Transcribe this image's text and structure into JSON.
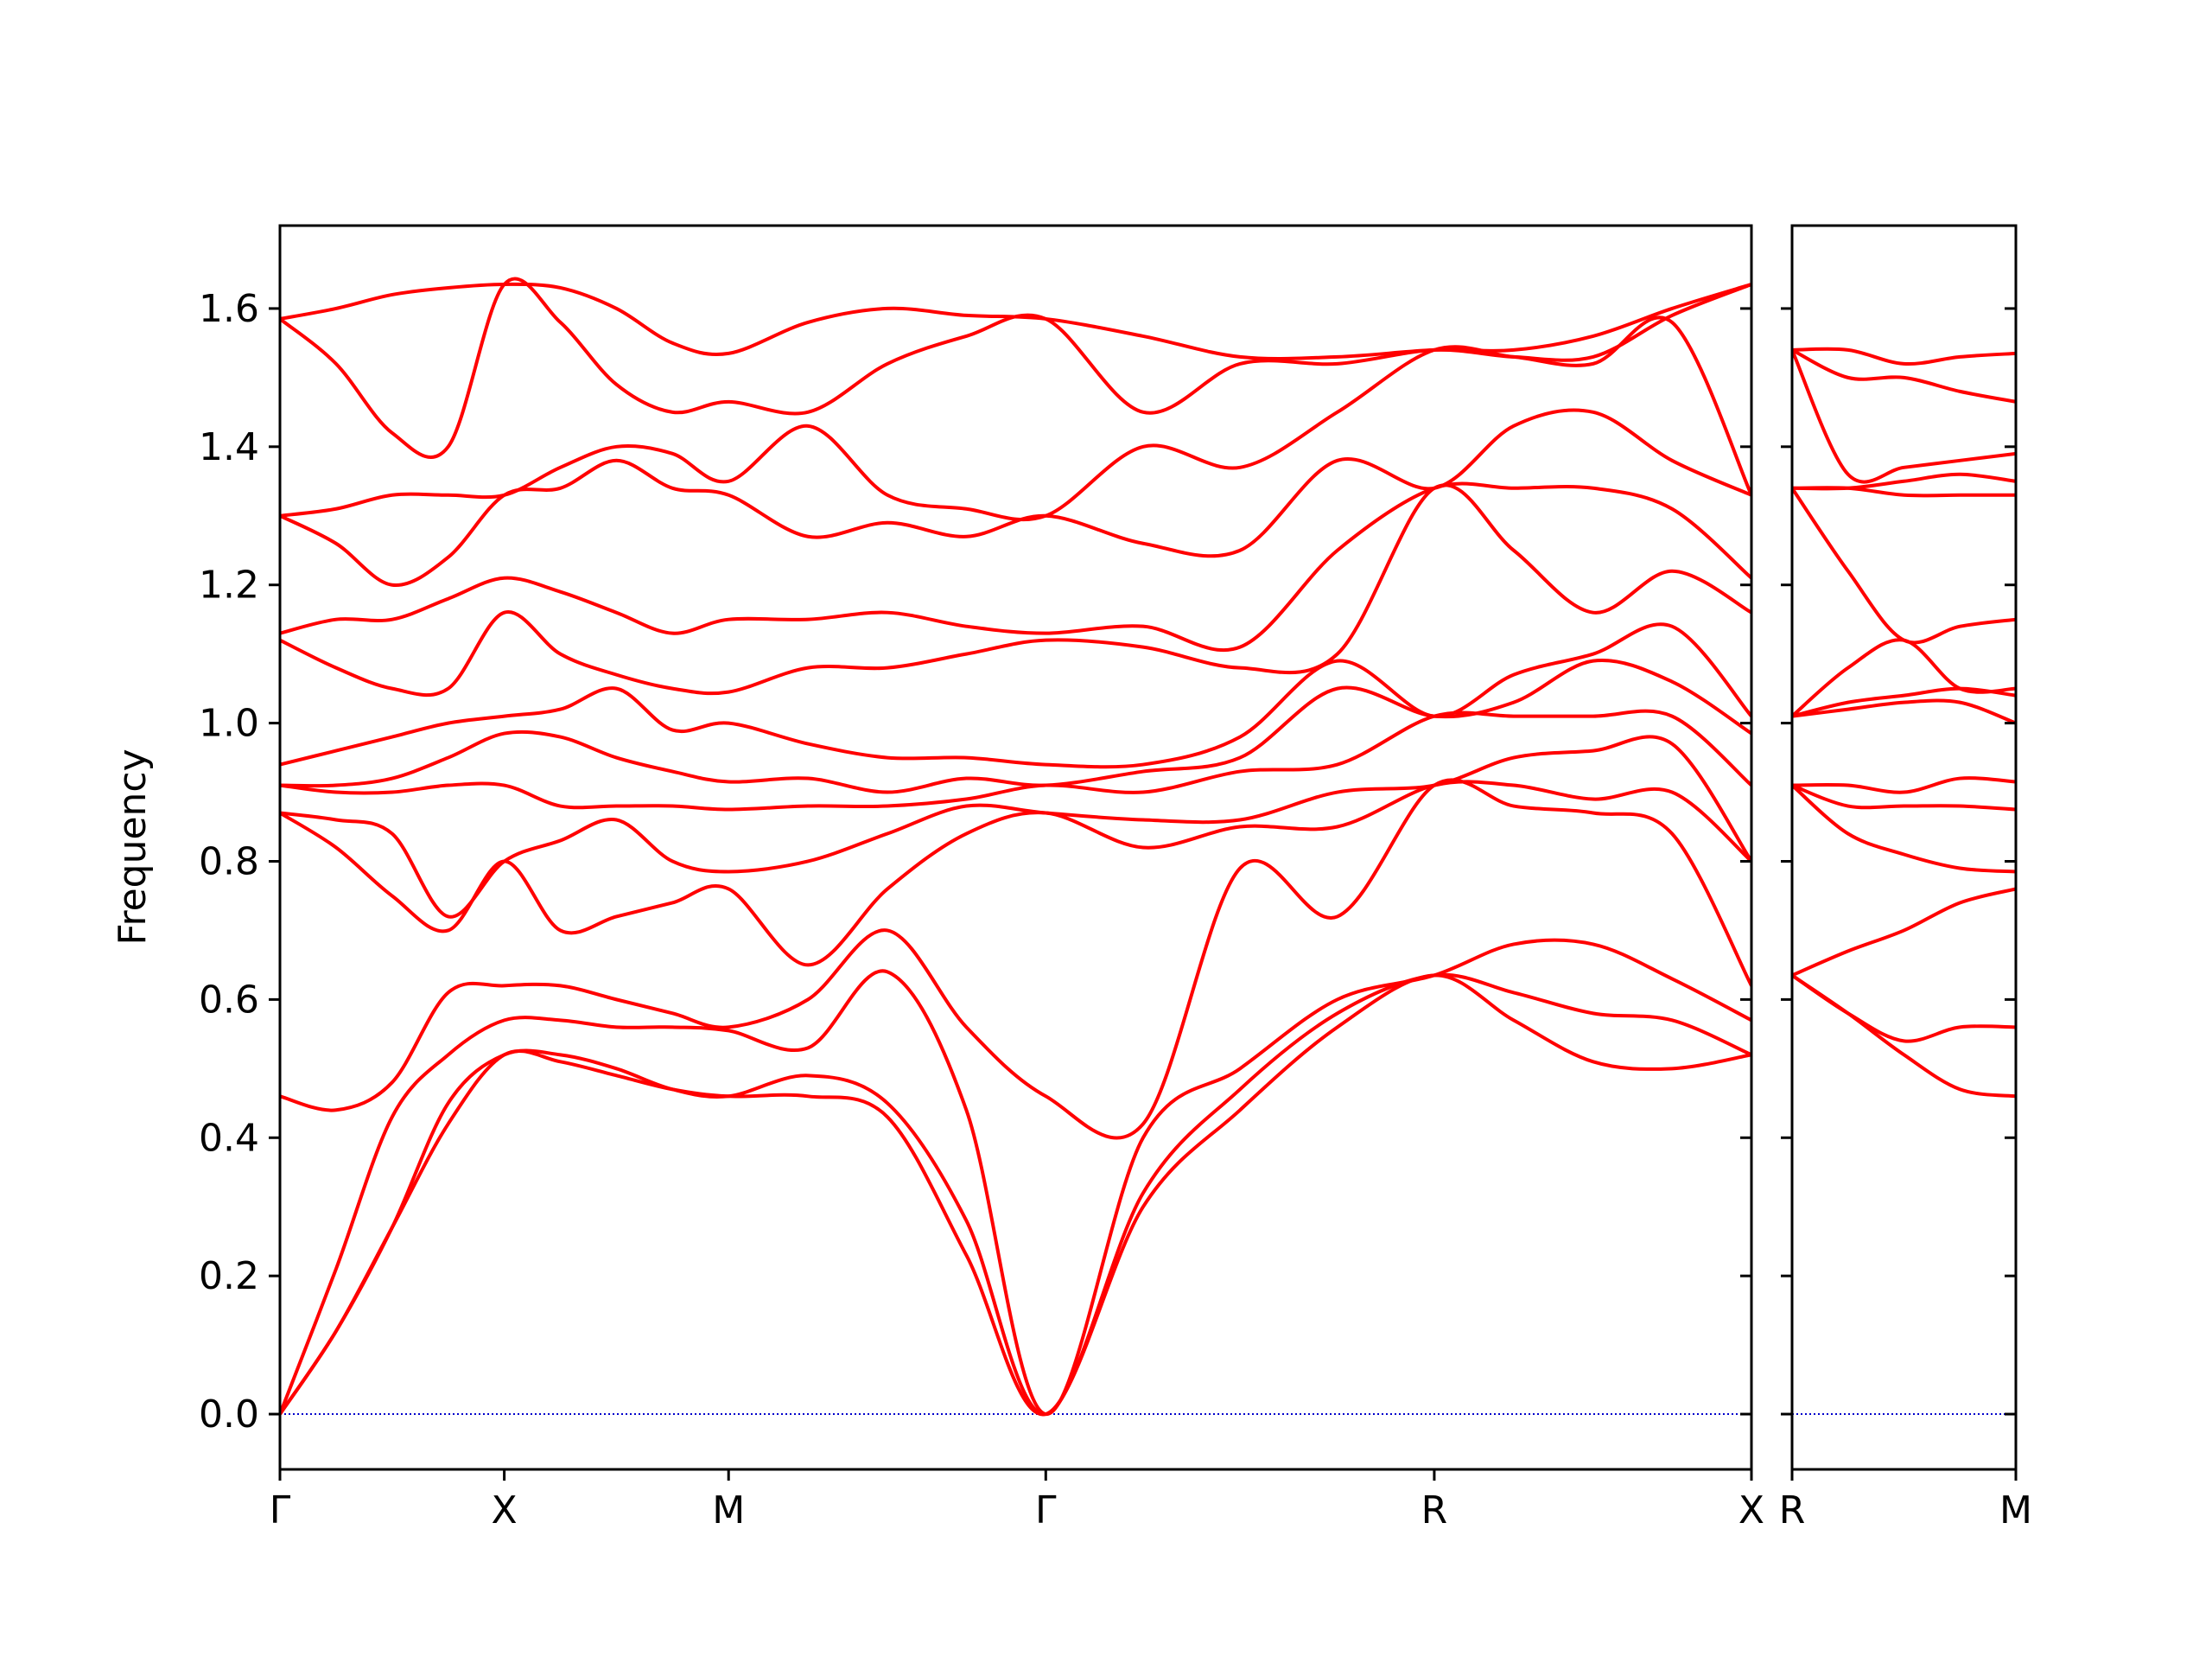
{
  "chart_data": [
    {
      "type": "line",
      "y_label": "Frequency",
      "color": "#ff0000",
      "hline": 0,
      "hline_color": "#0000cc",
      "xlim": [
        0,
        3.28
      ],
      "ylim": [
        -0.08,
        1.72
      ],
      "xticks": [
        {
          "value": 0,
          "label": "Γ"
        },
        {
          "value": 0.5,
          "label": "X"
        },
        {
          "value": 1.0,
          "label": "M"
        },
        {
          "value": 1.707,
          "label": "Γ"
        },
        {
          "value": 2.573,
          "label": "R"
        },
        {
          "value": 3.28,
          "label": "X"
        }
      ],
      "yticks": [
        {
          "value": 0,
          "label": "0.0"
        },
        {
          "value": 0.2,
          "label": "0.2"
        },
        {
          "value": 0.4,
          "label": "0.4"
        },
        {
          "value": 0.6,
          "label": "0.6"
        },
        {
          "value": 0.8,
          "label": "0.8"
        },
        {
          "value": 1.0,
          "label": "1.0"
        },
        {
          "value": 1.2,
          "label": "1.2"
        },
        {
          "value": 1.4,
          "label": "1.4"
        },
        {
          "value": 1.6,
          "label": "1.6"
        }
      ],
      "x": [
        0,
        0.125,
        0.25,
        0.375,
        0.5,
        0.625,
        0.75,
        0.875,
        1.0,
        1.177,
        1.354,
        1.53,
        1.707,
        1.924,
        2.14,
        2.357,
        2.573,
        2.75,
        2.927,
        3.103,
        3.28
      ],
      "series": [
        {
          "values": [
            0,
            0.12,
            0.27,
            0.42,
            0.52,
            0.51,
            0.49,
            0.47,
            0.46,
            0.46,
            0.43,
            0.23,
            0,
            0.3,
            0.44,
            0.56,
            0.635,
            0.57,
            0.51,
            0.5,
            0.52
          ]
        },
        {
          "values": [
            0,
            0.12,
            0.27,
            0.45,
            0.52,
            0.52,
            0.5,
            0.47,
            0.46,
            0.49,
            0.45,
            0.28,
            0,
            0.32,
            0.47,
            0.58,
            0.635,
            0.61,
            0.58,
            0.57,
            0.52
          ]
        },
        {
          "values": [
            0,
            0.21,
            0.43,
            0.52,
            0.57,
            0.57,
            0.56,
            0.56,
            0.555,
            0.53,
            0.64,
            0.44,
            0,
            0.4,
            0.5,
            0.6,
            0.635,
            0.68,
            0.68,
            0.63,
            0.57
          ]
        },
        {
          "values": [
            0.46,
            0.44,
            0.48,
            0.61,
            0.62,
            0.62,
            0.6,
            0.58,
            0.56,
            0.6,
            0.7,
            0.56,
            0.46,
            0.42,
            0.79,
            0.72,
            0.91,
            0.88,
            0.87,
            0.84,
            0.62
          ]
        },
        {
          "values": [
            0.87,
            0.82,
            0.75,
            0.7,
            0.8,
            0.7,
            0.72,
            0.74,
            0.76,
            0.65,
            0.76,
            0.84,
            0.87,
            0.82,
            0.85,
            0.85,
            0.91,
            0.91,
            0.89,
            0.9,
            0.8
          ]
        },
        {
          "values": [
            0.87,
            0.86,
            0.84,
            0.72,
            0.8,
            0.83,
            0.86,
            0.8,
            0.785,
            0.8,
            0.84,
            0.88,
            0.87,
            0.86,
            0.86,
            0.9,
            0.91,
            0.95,
            0.96,
            0.97,
            0.8
          ]
        },
        {
          "values": [
            0.91,
            0.9,
            0.9,
            0.91,
            0.91,
            0.88,
            0.88,
            0.88,
            0.875,
            0.88,
            0.88,
            0.89,
            0.91,
            0.9,
            0.93,
            0.94,
            1.01,
            1.01,
            1.01,
            1.01,
            0.91
          ]
        },
        {
          "values": [
            0.91,
            0.91,
            0.92,
            0.95,
            0.985,
            0.98,
            0.95,
            0.93,
            0.915,
            0.92,
            0.9,
            0.92,
            0.91,
            0.93,
            0.95,
            1.05,
            1.01,
            1.03,
            1.09,
            1.06,
            0.985
          ]
        },
        {
          "values": [
            0.94,
            0.96,
            0.98,
            1.0,
            1.01,
            1.02,
            1.05,
            0.99,
            1.0,
            0.97,
            0.95,
            0.95,
            0.94,
            0.94,
            0.98,
            1.09,
            1.01,
            1.07,
            1.1,
            1.14,
            1.01
          ]
        },
        {
          "values": [
            1.12,
            1.08,
            1.05,
            1.05,
            1.16,
            1.1,
            1.07,
            1.05,
            1.045,
            1.08,
            1.08,
            1.1,
            1.12,
            1.11,
            1.08,
            1.1,
            1.34,
            1.25,
            1.16,
            1.22,
            1.16
          ]
        },
        {
          "values": [
            1.13,
            1.15,
            1.15,
            1.18,
            1.21,
            1.19,
            1.16,
            1.13,
            1.15,
            1.15,
            1.16,
            1.14,
            1.13,
            1.14,
            1.11,
            1.25,
            1.34,
            1.34,
            1.34,
            1.31,
            1.21
          ]
        },
        {
          "values": [
            1.3,
            1.26,
            1.2,
            1.24,
            1.33,
            1.34,
            1.38,
            1.34,
            1.33,
            1.27,
            1.29,
            1.27,
            1.3,
            1.26,
            1.25,
            1.38,
            1.34,
            1.43,
            1.45,
            1.38,
            1.33
          ]
        },
        {
          "values": [
            1.3,
            1.31,
            1.33,
            1.33,
            1.33,
            1.37,
            1.4,
            1.39,
            1.35,
            1.43,
            1.33,
            1.31,
            1.3,
            1.4,
            1.37,
            1.45,
            1.54,
            1.53,
            1.52,
            1.58,
            1.33
          ]
        },
        {
          "values": [
            1.585,
            1.52,
            1.42,
            1.4,
            1.635,
            1.58,
            1.49,
            1.45,
            1.465,
            1.45,
            1.52,
            1.56,
            1.585,
            1.45,
            1.52,
            1.52,
            1.54,
            1.53,
            1.53,
            1.59,
            1.635
          ]
        },
        {
          "values": [
            1.585,
            1.6,
            1.62,
            1.63,
            1.635,
            1.63,
            1.6,
            1.55,
            1.535,
            1.58,
            1.6,
            1.59,
            1.585,
            1.56,
            1.53,
            1.53,
            1.54,
            1.54,
            1.56,
            1.6,
            1.635
          ]
        }
      ]
    },
    {
      "type": "line",
      "color": "#ff0000",
      "hline": 0,
      "hline_color": "#0000cc",
      "xlim": [
        0,
        0.5
      ],
      "ylim": [
        -0.08,
        1.72
      ],
      "xticks": [
        {
          "value": 0,
          "label": "R"
        },
        {
          "value": 0.5,
          "label": "M"
        }
      ],
      "yticks": [
        0,
        0.2,
        0.4,
        0.6,
        0.8,
        1.0,
        1.2,
        1.4,
        1.6
      ],
      "x": [
        0,
        0.125,
        0.25,
        0.375,
        0.5
      ],
      "series": [
        {
          "values": [
            0.635,
            0.58,
            0.52,
            0.47,
            0.46
          ]
        },
        {
          "values": [
            0.635,
            0.58,
            0.54,
            0.56,
            0.56
          ]
        },
        {
          "values": [
            0.635,
            0.67,
            0.7,
            0.74,
            0.76
          ]
        },
        {
          "values": [
            0.91,
            0.84,
            0.81,
            0.79,
            0.785
          ]
        },
        {
          "values": [
            0.91,
            0.88,
            0.88,
            0.88,
            0.875
          ]
        },
        {
          "values": [
            0.91,
            0.91,
            0.9,
            0.92,
            0.915
          ]
        },
        {
          "values": [
            1.01,
            1.02,
            1.03,
            1.03,
            1.0
          ]
        },
        {
          "values": [
            1.01,
            1.03,
            1.04,
            1.05,
            1.04
          ]
        },
        {
          "values": [
            1.01,
            1.08,
            1.12,
            1.05,
            1.05
          ]
        },
        {
          "values": [
            1.34,
            1.22,
            1.12,
            1.14,
            1.15
          ]
        },
        {
          "values": [
            1.34,
            1.34,
            1.33,
            1.33,
            1.33
          ]
        },
        {
          "values": [
            1.34,
            1.34,
            1.35,
            1.36,
            1.35
          ]
        },
        {
          "values": [
            1.54,
            1.36,
            1.37,
            1.38,
            1.39
          ]
        },
        {
          "values": [
            1.54,
            1.5,
            1.5,
            1.48,
            1.465
          ]
        },
        {
          "values": [
            1.54,
            1.54,
            1.52,
            1.53,
            1.535
          ]
        }
      ]
    }
  ]
}
